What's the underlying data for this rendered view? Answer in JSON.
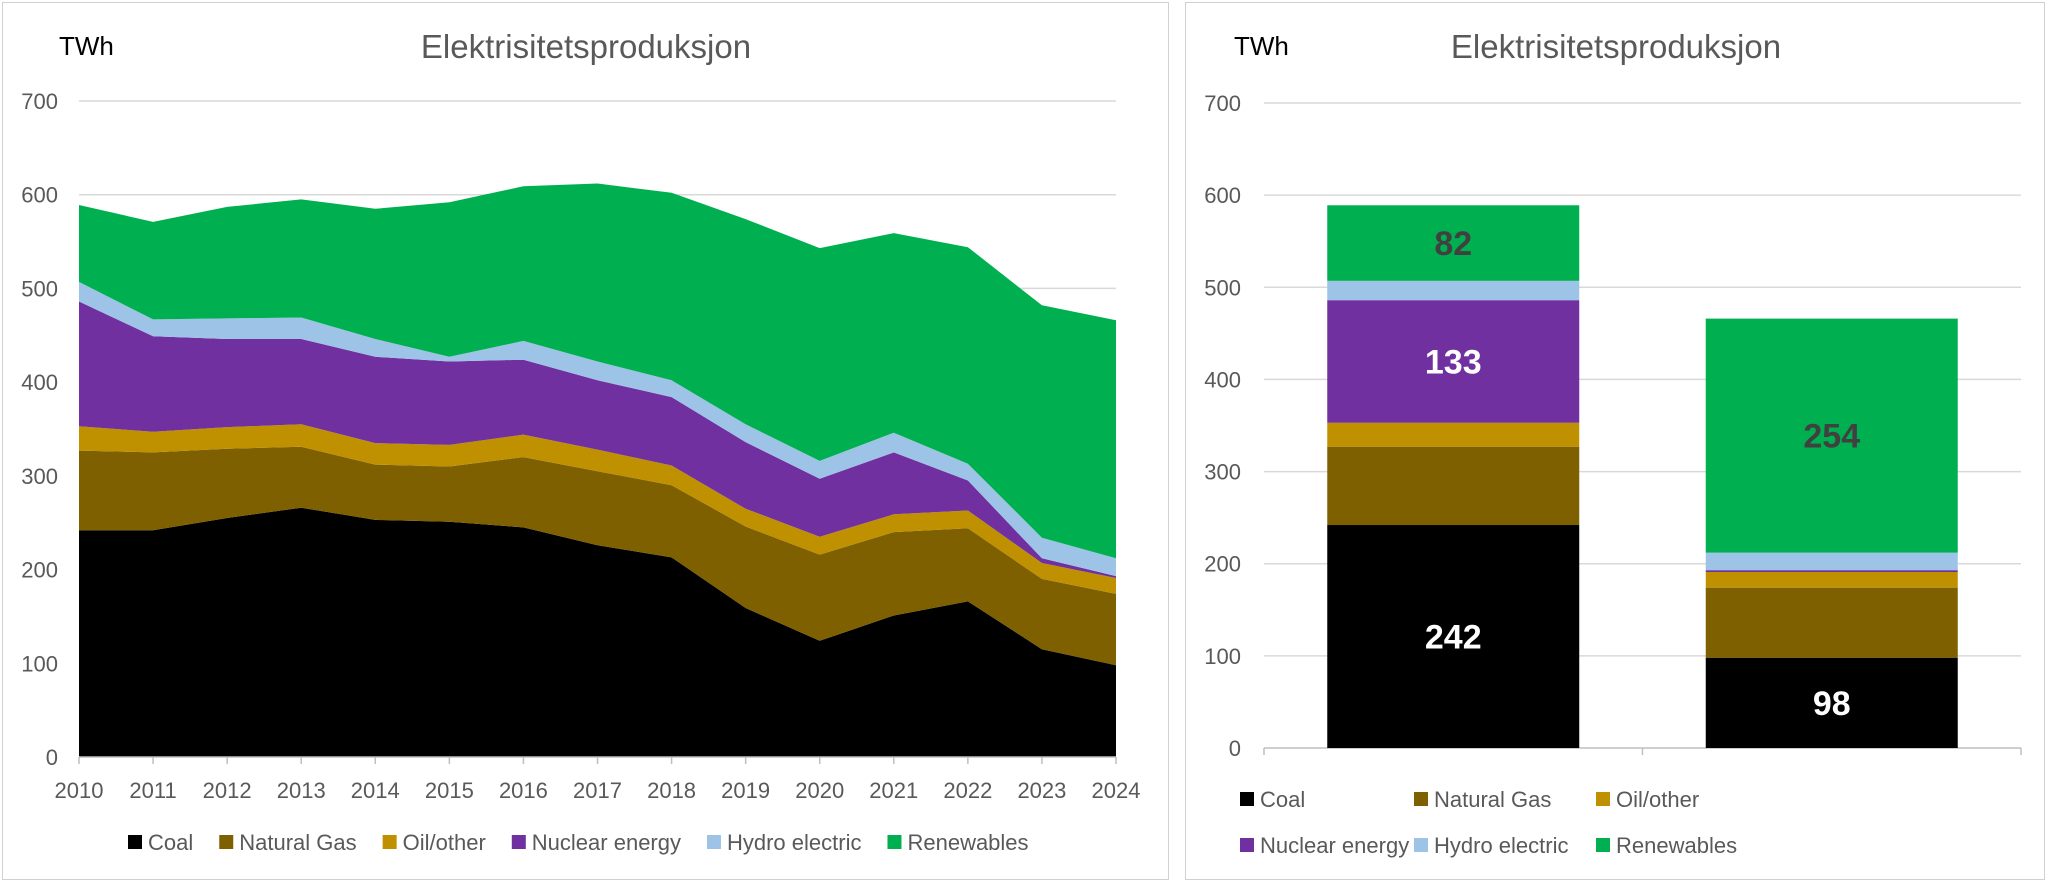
{
  "chart_data": [
    {
      "type": "area",
      "stacked": true,
      "title": "Elektrisitetsproduksjon",
      "unit_label": "TWh",
      "ylim": [
        0,
        700
      ],
      "yticks": [
        0,
        100,
        200,
        300,
        400,
        500,
        600,
        700
      ],
      "grid": true,
      "legend_position": "bottom",
      "x": [
        "2010",
        "2011",
        "2012",
        "2013",
        "2014",
        "2015",
        "2016",
        "2017",
        "2018",
        "2019",
        "2020",
        "2021",
        "2022",
        "2023",
        "2024"
      ],
      "series": [
        {
          "name": "Coal",
          "color": "#000000",
          "values": [
            242,
            242,
            255,
            266,
            253,
            251,
            245,
            226,
            213,
            159,
            124,
            151,
            166,
            115,
            98
          ]
        },
        {
          "name": "Natural Gas",
          "color": "#7f6000",
          "values": [
            85,
            83,
            74,
            65,
            59,
            59,
            75,
            79,
            77,
            87,
            92,
            89,
            78,
            75,
            76
          ]
        },
        {
          "name": "Oil/other",
          "color": "#bf9000",
          "values": [
            26,
            22,
            23,
            24,
            23,
            23,
            24,
            23,
            21,
            19,
            19,
            19,
            19,
            17,
            17
          ]
        },
        {
          "name": "Nuclear energy",
          "color": "#7030a0",
          "values": [
            133,
            102,
            94,
            91,
            92,
            89,
            80,
            74,
            73,
            71,
            62,
            66,
            32,
            5,
            2
          ]
        },
        {
          "name": "Hydro electric",
          "color": "#9dc3e6",
          "values": [
            21,
            18,
            22,
            23,
            19,
            5,
            20,
            20,
            18,
            19,
            19,
            21,
            18,
            22,
            19
          ]
        },
        {
          "name": "Renewables",
          "color": "#00b050",
          "values": [
            82,
            104,
            119,
            126,
            139,
            165,
            165,
            190,
            200,
            219,
            227,
            213,
            231,
            248,
            254
          ]
        }
      ]
    },
    {
      "type": "bar",
      "stacked": true,
      "title": "Elektrisitetsproduksjon",
      "unit_label": "TWh",
      "ylim": [
        0,
        700
      ],
      "yticks": [
        0,
        100,
        200,
        300,
        400,
        500,
        600,
        700
      ],
      "grid": true,
      "legend_position": "bottom",
      "categories": [
        "",
        ""
      ],
      "series": [
        {
          "name": "Coal",
          "color": "#000000",
          "values": [
            242,
            98
          ],
          "labels": [
            "242",
            "98"
          ],
          "label_color": "#ffffff"
        },
        {
          "name": "Natural Gas",
          "color": "#7f6000",
          "values": [
            85,
            76
          ],
          "labels": [
            "",
            ""
          ],
          "label_color": "#ffffff"
        },
        {
          "name": "Oil/other",
          "color": "#bf9000",
          "values": [
            26,
            17
          ],
          "labels": [
            "",
            ""
          ],
          "label_color": "#ffffff"
        },
        {
          "name": "Nuclear energy",
          "color": "#7030a0",
          "values": [
            133,
            2
          ],
          "labels": [
            "133",
            ""
          ],
          "label_color": "#ffffff"
        },
        {
          "name": "Hydro electric",
          "color": "#9dc3e6",
          "values": [
            21,
            19
          ],
          "labels": [
            "",
            ""
          ],
          "label_color": "#404040"
        },
        {
          "name": "Renewables",
          "color": "#00b050",
          "values": [
            82,
            254
          ],
          "labels": [
            "82",
            "254"
          ],
          "label_color": "#404040"
        }
      ]
    }
  ]
}
